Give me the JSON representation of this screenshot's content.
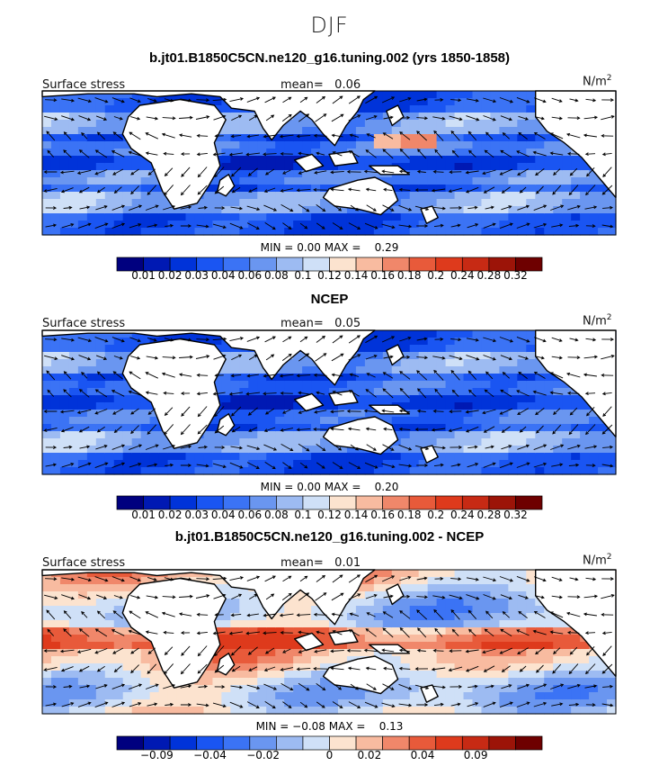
{
  "figure": {
    "season": "DJF",
    "colors": [
      "#00007f",
      "#0019b3",
      "#0033d9",
      "#1a55f2",
      "#3b73f5",
      "#6a96f0",
      "#9dbbf2",
      "#cfe0f7",
      "#fce3cf",
      "#f8bba0",
      "#f0876a",
      "#e85a3a",
      "#de3a1c",
      "#c72a14",
      "#9c1408",
      "#6e0000"
    ]
  },
  "chart_data": [
    {
      "type": "heatmap",
      "title": "b.jt01.B1850C5CN.ne120_g16.tuning.002 (yrs 1850-1858)",
      "left_label": "Surface stress",
      "mean_label": "mean=",
      "mean": "0.06",
      "units_base": "N/m",
      "units_exp": "2",
      "min_label": "MIN =",
      "min": "0.00",
      "max_label": "MAX =",
      "max": "0.29",
      "colorbar_ticks": [
        "0.01",
        "0.02",
        "0.03",
        "0.04",
        "0.06",
        "0.08",
        "0.1",
        "0.12",
        "0.14",
        "0.16",
        "0.18",
        "0.2",
        "0.24",
        "0.28",
        "0.32"
      ],
      "field": "model"
    },
    {
      "type": "heatmap",
      "title": "NCEP",
      "left_label": "Surface stress",
      "mean_label": "mean=",
      "mean": "0.05",
      "units_base": "N/m",
      "units_exp": "2",
      "min_label": "MIN =",
      "min": "0.00",
      "max_label": "MAX =",
      "max": "0.20",
      "colorbar_ticks": [
        "0.01",
        "0.02",
        "0.03",
        "0.04",
        "0.06",
        "0.08",
        "0.1",
        "0.12",
        "0.14",
        "0.16",
        "0.18",
        "0.2",
        "0.24",
        "0.28",
        "0.32"
      ],
      "field": "obs"
    },
    {
      "type": "heatmap",
      "title": "b.jt01.B1850C5CN.ne120_g16.tuning.002 - NCEP",
      "left_label": "Surface stress",
      "mean_label": "mean=",
      "mean": "0.01",
      "units_base": "N/m",
      "units_exp": "2",
      "min_label": "MIN =",
      "min": "−0.08",
      "max_label": "MAX =",
      "max": "0.13",
      "colorbar_ticks": [
        "−0.09",
        "−0.04",
        "−0.02",
        "0",
        "0.02",
        "0.04",
        "0.09"
      ],
      "field": "diff"
    }
  ]
}
